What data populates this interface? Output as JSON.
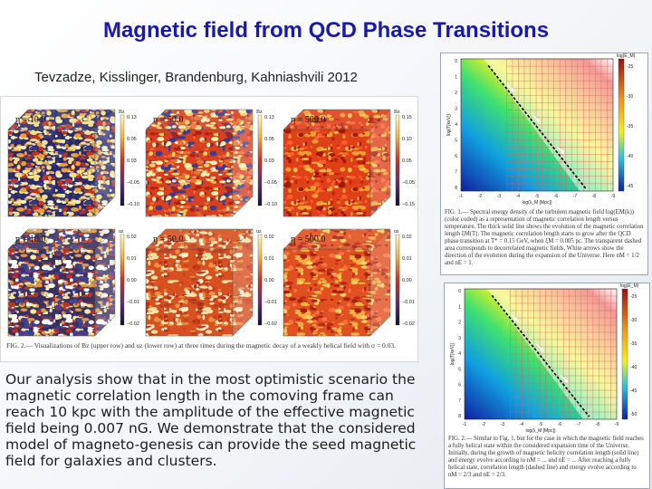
{
  "slide": {
    "title": "Magnetic field from QCD Phase Transitions",
    "authors": "Tevzadze, Kisslinger, Brandenburg, Kahniashvili 2012",
    "body": "Our analysis show that in the most optimistic scenario the magnetic correlation length in the comoving frame can reach 10 kpc with the amplitude of the effective magnetic field being 0.007 nG. We demonstrate that the considered model of magneto-genesis can provide the seed magnetic field for galaxies and clusters."
  },
  "cube_figure": {
    "top_row": [
      {
        "label": "η = 10.0",
        "colorbar_title": "Bz",
        "ticks": [
          "0.13",
          "0.05",
          "0.03",
          "−0.05",
          "−0.10"
        ]
      },
      {
        "label": "η = 50.0",
        "colorbar_title": "Bz",
        "ticks": [
          "0.13",
          "0.05",
          "0.03",
          "−0.05",
          "−0.10"
        ]
      },
      {
        "label": "η = 500.0",
        "colorbar_title": "Bz",
        "ticks": [
          "0.15",
          "0.10",
          "0.05",
          "−0.05",
          "−0.15"
        ]
      }
    ],
    "bottom_row": [
      {
        "label": "η = 10.0",
        "colorbar_title": "uz",
        "ticks": [
          "0.02",
          "0.01",
          "0.00",
          "−0.01",
          "−0.02"
        ]
      },
      {
        "label": "η = 50.0",
        "colorbar_title": "uz",
        "ticks": [
          "0.02",
          "0.01",
          "0.00",
          "−0.01",
          "−0.02"
        ]
      },
      {
        "label": "η = 500.0",
        "colorbar_title": "uz",
        "ticks": [
          "0.02",
          "0.01",
          "0.00",
          "−0.01",
          "−0.02"
        ]
      }
    ],
    "caption": "FIG. 2.— Visualizations of Bz (upper row) and uz (lower row) at three times during the magnetic decay of a weakly helical field with σ = 0.03."
  },
  "fig1": {
    "colorbar_title": "log(E_M)",
    "colorbar_ticks": [
      "-25",
      "-30",
      "-35",
      "-40",
      "-45"
    ],
    "y_label": "log(T[keV])",
    "y_ticks": [
      "0",
      "1",
      "2",
      "3",
      "4",
      "5",
      "6",
      "7",
      "8"
    ],
    "x_label": "log(λ_M [Mpc])",
    "x_ticks": [
      "-1",
      "-2",
      "-3",
      "-4",
      "-5",
      "-6",
      "-7",
      "-8",
      "-9"
    ],
    "caption": "FIG. 1.— Spectral energy density of the turbulent magnetic field log(EM(k)) (color coded) as a representation of magnetic correlation length versus temperature. The thick solid line shows the evolution of the magnetic correlation length ξM(T). The magnetic correlation length starts to grow after the QCD phase transition at T* = 0.15 GeV, when ξM = 0.005 pc. The transparent dashed area corresponds to decorrelated magnetic fields. White arrows show the direction of the evolution during the expansion of the Universe. Here nM = 1/2 and nE = 1."
  },
  "fig2": {
    "colorbar_title": "log(E_M)",
    "colorbar_ticks": [
      "-25",
      "-30",
      "-35",
      "-40",
      "-45",
      "-50"
    ],
    "y_label": "log(T[keV])",
    "y_ticks": [
      "0",
      "1",
      "2",
      "3",
      "4",
      "5",
      "6",
      "7",
      "8"
    ],
    "x_label": "log(λ_M [Mpc])",
    "x_ticks": [
      "-1",
      "-2",
      "-3",
      "-4",
      "-5",
      "-6",
      "-7",
      "-8",
      "-9"
    ],
    "caption": "FIG. 2.— Similar to Fig. 1, but for the case in which the magnetic field reaches a fully helical state within the considered expansion time of the Universe. Initially, during the growth of magnetic helicity correlation length (solid line) and energy evolve according to nM = ... and nE = ... After reaching a fully helical state, correlation length (dashed line) and energy evolve according to nM = 2/3 and nE = 2/3."
  },
  "colors": {
    "title": "#1a1aa8",
    "text": "#1d1d1d"
  }
}
